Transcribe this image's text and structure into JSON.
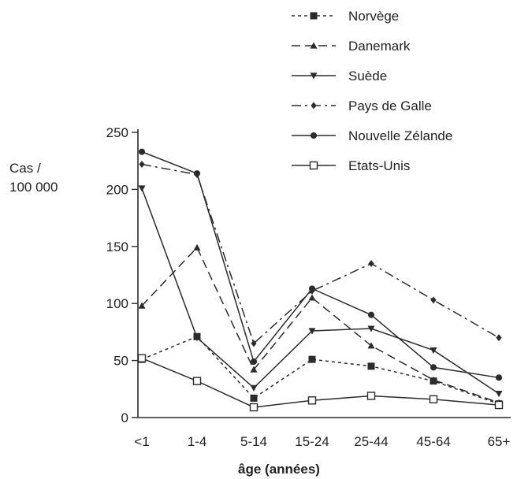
{
  "chart_data": {
    "type": "line",
    "categories": [
      "<1",
      "1-4",
      "5-14",
      "15-24",
      "25-44",
      "45-64",
      "65+"
    ],
    "ylabel_lines": [
      "Cas /",
      "100 000"
    ],
    "xlabel": "âge (années)",
    "ylim": [
      0,
      250
    ],
    "yticks": [
      0,
      50,
      100,
      150,
      200,
      250
    ],
    "grid": false,
    "legend_position": "top-right",
    "series": [
      {
        "name": "Norvège",
        "marker": "square-filled",
        "dash": "dotted",
        "values": [
          51,
          71,
          17,
          51,
          45,
          32,
          12
        ]
      },
      {
        "name": "Danemark",
        "marker": "triangle-up",
        "dash": "dash",
        "values": [
          98,
          149,
          42,
          105,
          63,
          33,
          13
        ]
      },
      {
        "name": "Suède",
        "marker": "triangle-down",
        "dash": "solid",
        "values": [
          201,
          70,
          26,
          76,
          78,
          59,
          21
        ]
      },
      {
        "name": "Pays de Galle",
        "marker": "diamond",
        "dash": "dashdot",
        "values": [
          222,
          213,
          65,
          111,
          135,
          103,
          70
        ]
      },
      {
        "name": "Nouvelle Zélande",
        "marker": "circle",
        "dash": "solid",
        "values": [
          233,
          214,
          49,
          113,
          90,
          44,
          35
        ]
      },
      {
        "name": "Etats-Unis",
        "marker": "square-open",
        "dash": "solid",
        "values": [
          52,
          32,
          9,
          15,
          19,
          16,
          11
        ]
      }
    ]
  }
}
